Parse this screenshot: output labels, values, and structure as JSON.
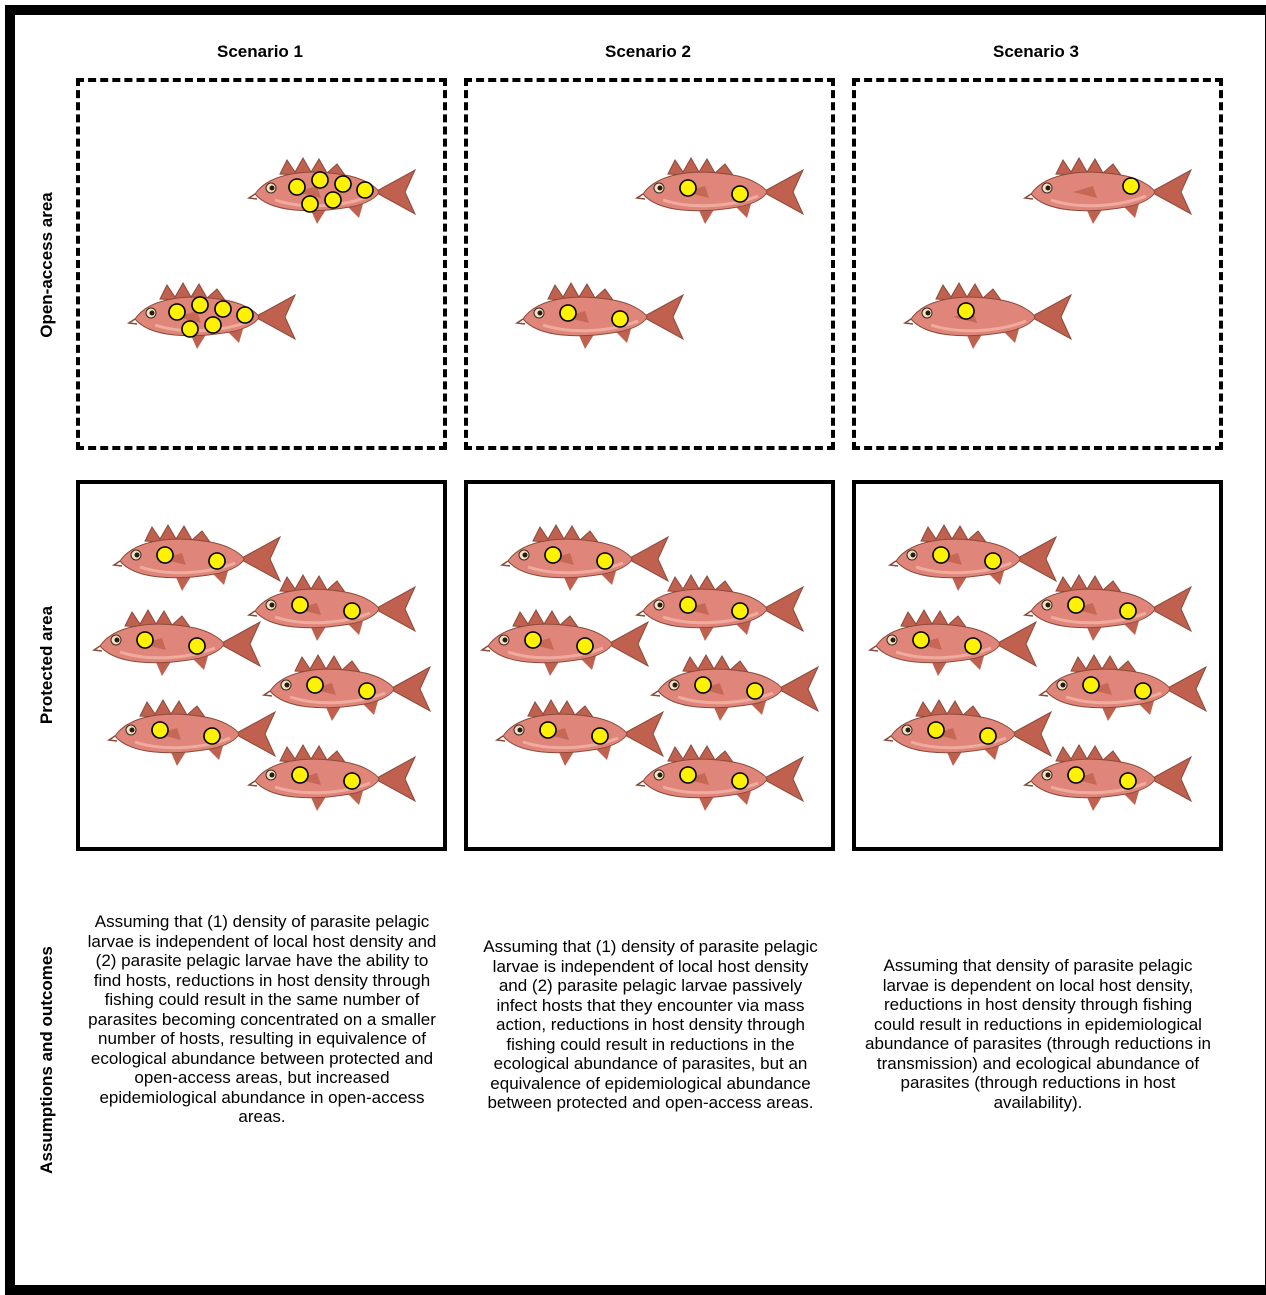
{
  "scenarios": [
    {
      "title": "Scenario 1",
      "open_access_parasites_per_fish": 6,
      "protected_parasites_per_fish": 2,
      "description": "Assuming that (1) density of parasite pelagic larvae is independent of local host density and (2) parasite pelagic larvae have the ability to find hosts, reductions in host density through fishing could result in the same number of parasites becoming concentrated on a smaller number of hosts, resulting in equivalence of ecological abundance between protected and open-access areas, but increased epidemiological abundance in open-access areas."
    },
    {
      "title": "Scenario 2",
      "open_access_parasites_per_fish": 2,
      "protected_parasites_per_fish": 2,
      "description": "Assuming that (1) density of parasite pelagic larvae is independent of local host density and (2) parasite pelagic larvae passively infect hosts that they encounter via mass action, reductions in host density through fishing could result in reductions in the ecological abundance of parasites, but an equivalence of epidemiological abundance between protected and open-access areas."
    },
    {
      "title": "Scenario 3",
      "open_access_parasites_per_fish": 1,
      "protected_parasites_per_fish": 2,
      "description": "Assuming that density of parasite pelagic larvae is dependent on local host density, reductions in host density through fishing could result in reductions in epidemiological abundance of parasites (through reductions in transmission) and ecological abundance of parasites (through reductions in host availability)."
    }
  ],
  "row_labels": {
    "open_access": "Open-access area",
    "protected": "Protected area",
    "assumptions": "Assumptions and outcomes"
  },
  "fish_counts": {
    "open_access": 2,
    "protected": 6
  },
  "colors": {
    "fish_body": "#e0857a",
    "fish_fin": "#c0604f",
    "fish_dark": "#8a4a3a",
    "parasite_fill": "#fff200",
    "parasite_stroke": "#000000"
  },
  "icons": {
    "host": "fish-icon",
    "parasite": "parasite-larva-icon"
  }
}
